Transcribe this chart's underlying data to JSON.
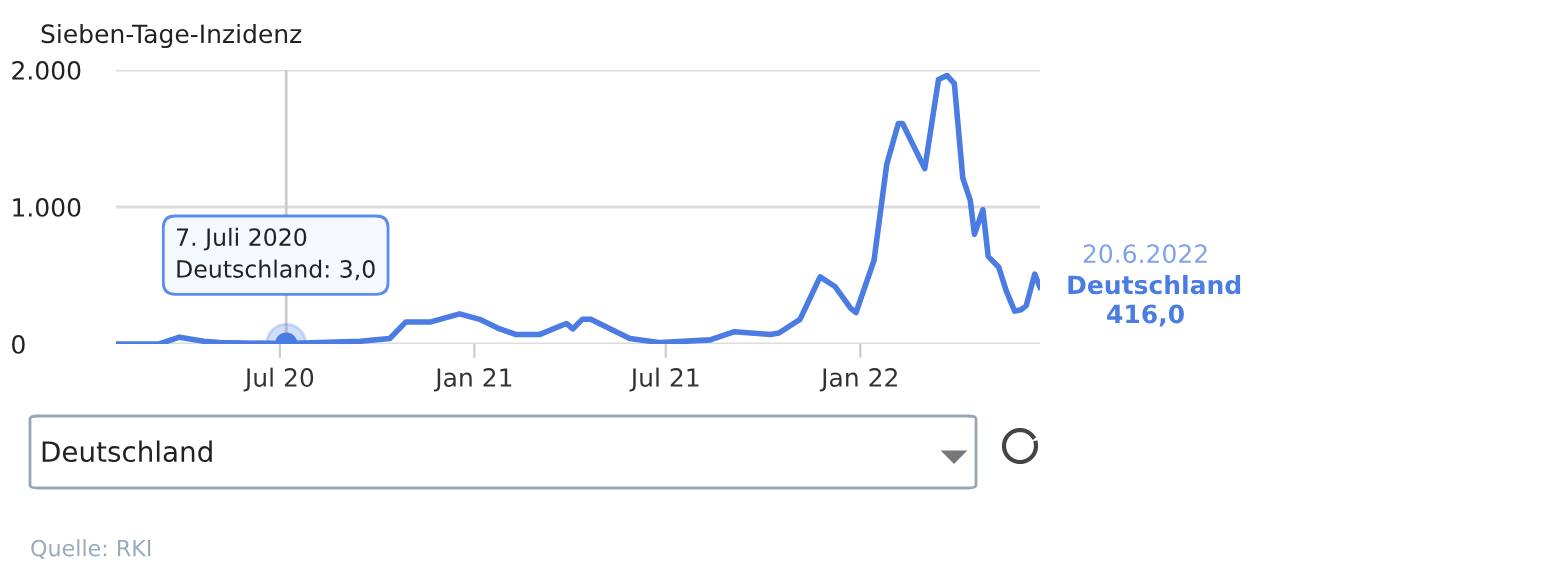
{
  "chart_data": {
    "type": "line",
    "ylabel": "Sieben-Tage-Inzidenz",
    "x": [
      "2020-01-28",
      "2020-03-09",
      "2020-03-28",
      "2020-04-20",
      "2020-05-05",
      "2020-07-07",
      "2020-09-15",
      "2020-10-13",
      "2020-10-28",
      "2020-11-20",
      "2020-12-18",
      "2021-01-06",
      "2021-01-25",
      "2021-02-09",
      "2021-03-04",
      "2021-03-29",
      "2021-04-04",
      "2021-04-13",
      "2021-04-21",
      "2021-05-28",
      "2021-06-26",
      "2021-08-12",
      "2021-09-04",
      "2021-10-08",
      "2021-10-16",
      "2021-11-05",
      "2021-11-24",
      "2021-12-08",
      "2021-12-23",
      "2021-12-28",
      "2022-01-14",
      "2022-01-26",
      "2022-02-06",
      "2022-02-10",
      "2022-03-03",
      "2022-03-16",
      "2022-03-24",
      "2022-03-31",
      "2022-04-08",
      "2022-04-15",
      "2022-04-19",
      "2022-04-27",
      "2022-05-02",
      "2022-05-12",
      "2022-05-19",
      "2022-05-27",
      "2022-06-02",
      "2022-06-07",
      "2022-06-15",
      "2022-06-20"
    ],
    "series": [
      {
        "name": "Deutschland",
        "color": "#4a7ce3",
        "values": [
          0,
          0,
          50,
          20,
          10,
          3,
          20,
          40,
          160,
          160,
          220,
          180,
          110,
          70,
          70,
          150,
          110,
          180,
          180,
          40,
          10,
          30,
          90,
          70,
          80,
          180,
          490,
          420,
          260,
          230,
          610,
          1310,
          1610,
          1610,
          1280,
          1930,
          1960,
          1900,
          1210,
          1050,
          800,
          980,
          640,
          560,
          390,
          240,
          250,
          280,
          510,
          416
        ]
      }
    ],
    "xlim": [
      "2020-01-28",
      "2022-06-20"
    ],
    "xticks": [
      {
        "value": "2020-07-01",
        "label": "Jul 20"
      },
      {
        "value": "2021-01-01",
        "label": "Jan 21"
      },
      {
        "value": "2021-07-01",
        "label": "Jul 21"
      },
      {
        "value": "2022-01-01",
        "label": "Jan 22"
      }
    ],
    "ylim": [
      0,
      2000
    ],
    "yticks": [
      {
        "value": 0,
        "label": "0"
      },
      {
        "value": 1000,
        "label": "1.000"
      },
      {
        "value": 2000,
        "label": "2.000"
      }
    ],
    "grid": "y",
    "legend": false,
    "marker": "none",
    "line_style": "solid",
    "ref_lines": [
      {
        "axis": "x",
        "value": "2020-07-07",
        "color": "#cccccc"
      }
    ],
    "annotations": [
      {
        "text": "7. Juli 2020\nDeutschland: 3,0",
        "x": "2020-07-07",
        "y": 3
      },
      {
        "text": "20.6.2022",
        "x": "2022-06-20",
        "y": 416
      },
      {
        "text": "416,0",
        "x": "2022-06-20",
        "y": 416
      },
      "Deutschland",
      "Quelle: RKI"
    ]
  }
}
